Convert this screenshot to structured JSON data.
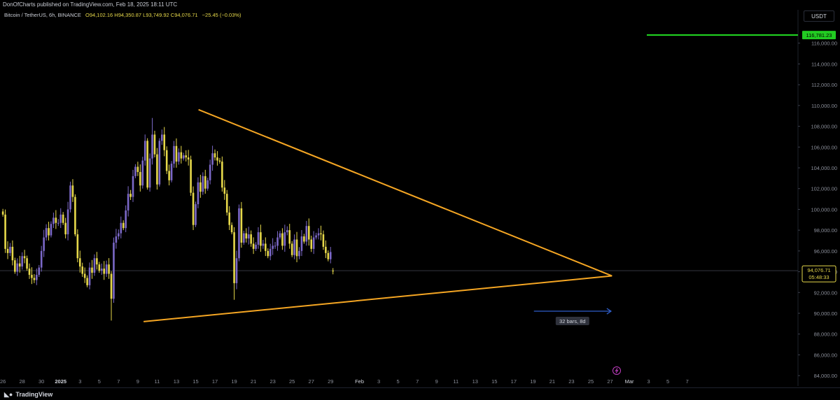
{
  "header": {
    "published": "DonOfCharts published on TradingView.com, Feb 18, 2025 18:11 UTC"
  },
  "legend": {
    "symbol": "Bitcoin / TetherUS, 6h, BINANCE",
    "ohlc": "O94,102.16 H94,350.87 L93,749.92 C94,076.71",
    "change": "−25.45 (−0.03%)"
  },
  "price_scale": {
    "currency": "USDT"
  },
  "colors": {
    "bull": "#7b68c8",
    "bear": "#e6d84a",
    "trendline": "#f5a623",
    "target_line": "#22dd22",
    "target_label_bg": "#22cc22",
    "price_label_bg": "#000000",
    "price_label_border": "#e6d84a",
    "measure_arrow": "#2f5ec9",
    "grid_text": "#8a8e99"
  },
  "footer": {
    "brand": "TradingView",
    "logo_icon": "tradingview-logo-icon"
  },
  "chart_data": {
    "type": "candlestick",
    "timeframe": "6h",
    "ylim": [
      83000,
      118000
    ],
    "xlim": [
      -0.3,
      82.5
    ],
    "yticks": [
      84000,
      86000,
      88000,
      90000,
      92000,
      94000,
      96000,
      98000,
      100000,
      102000,
      104000,
      106000,
      108000,
      110000,
      112000,
      114000,
      116000
    ],
    "ytick_labels": [
      "84,000.00",
      "86,000.00",
      "88,000.00",
      "90,000.00",
      "92,000.00",
      "94,000.00",
      "96,000.00",
      "98,000.00",
      "100,000.00",
      "102,000.00",
      "104,000.00",
      "106,000.00",
      "108,000.00",
      "110,000.00",
      "112,000.00",
      "114,000.00",
      "116,000.00"
    ],
    "xticks": [
      {
        "day": 0,
        "label": "26"
      },
      {
        "day": 2,
        "label": "28"
      },
      {
        "day": 4,
        "label": "30"
      },
      {
        "day": 6,
        "label": "2025"
      },
      {
        "day": 8,
        "label": "3"
      },
      {
        "day": 10,
        "label": "5"
      },
      {
        "day": 12,
        "label": "7"
      },
      {
        "day": 14,
        "label": "9"
      },
      {
        "day": 16,
        "label": "11"
      },
      {
        "day": 18,
        "label": "13"
      },
      {
        "day": 20,
        "label": "15"
      },
      {
        "day": 22,
        "label": "17"
      },
      {
        "day": 24,
        "label": "19"
      },
      {
        "day": 26,
        "label": "21"
      },
      {
        "day": 28,
        "label": "23"
      },
      {
        "day": 30,
        "label": "25"
      },
      {
        "day": 32,
        "label": "27"
      },
      {
        "day": 34,
        "label": "29"
      },
      {
        "day": 37,
        "label": "Feb"
      },
      {
        "day": 39,
        "label": "3"
      },
      {
        "day": 41,
        "label": "5"
      },
      {
        "day": 43,
        "label": "7"
      },
      {
        "day": 45,
        "label": "9"
      },
      {
        "day": 47,
        "label": "11"
      },
      {
        "day": 49,
        "label": "13"
      },
      {
        "day": 51,
        "label": "15"
      },
      {
        "day": 53,
        "label": "17"
      },
      {
        "day": 55,
        "label": "19"
      },
      {
        "day": 57,
        "label": "21"
      },
      {
        "day": 59,
        "label": "23"
      },
      {
        "day": 61,
        "label": "25"
      },
      {
        "day": 63,
        "label": "27"
      },
      {
        "day": 65,
        "label": "Mar"
      },
      {
        "day": 67,
        "label": "3"
      },
      {
        "day": 69,
        "label": "5"
      },
      {
        "day": 71,
        "label": "7"
      }
    ],
    "closes": [
      99500,
      96200,
      95800,
      96400,
      95100,
      94000,
      94800,
      94500,
      95500,
      95300,
      94300,
      93700,
      93400,
      93200,
      93700,
      94400,
      96000,
      97300,
      98200,
      97500,
      98600,
      99200,
      98700,
      98700,
      99500,
      98700,
      97600,
      100000,
      102300,
      101200,
      97600,
      95300,
      94500,
      93800,
      93400,
      92700,
      94400,
      93900,
      95300,
      94700,
      94100,
      94300,
      93800,
      94700,
      93800,
      91400,
      96800,
      97400,
      97700,
      98700,
      98200,
      99900,
      101500,
      101200,
      103200,
      104100,
      103600,
      102300,
      104700,
      106600,
      102100,
      104900,
      107200,
      105300,
      102400,
      106600,
      107200,
      105700,
      103700,
      102800,
      104400,
      106100,
      104600,
      105500,
      104900,
      105200,
      105000,
      104800,
      101600,
      98500,
      100500,
      102600,
      101700,
      103200,
      102000,
      102800,
      104300,
      105400,
      105000,
      104700,
      104600,
      102100,
      101500,
      99700,
      98500,
      97800,
      92900,
      95300,
      100100,
      96800,
      97700,
      97200,
      97600,
      96700,
      96200,
      96600,
      97800,
      96500,
      96700,
      96000,
      95500,
      96200,
      96500,
      96500,
      97300,
      97700,
      96500,
      97800,
      98000,
      96700,
      95600,
      97100,
      95500,
      96000,
      97400,
      96900,
      98400,
      97100,
      96200,
      97300,
      97500,
      97700,
      97600,
      96400,
      95800,
      95200,
      95900,
      94100
    ],
    "last_candle_ohlc": {
      "open": 94102.16,
      "high": 94350.87,
      "low": 93749.92,
      "close": 94076.71
    },
    "price_label": {
      "value": "94,076.71",
      "countdown": "05:48:33"
    },
    "target": {
      "value": 116781.23,
      "label": "116,781.23"
    },
    "triangle": {
      "upper": [
        {
          "day": 20.3,
          "price": 109600
        },
        {
          "day": 63.2,
          "price": 93600
        }
      ],
      "lower": [
        {
          "day": 14.6,
          "price": 89200
        },
        {
          "day": 63.2,
          "price": 93600
        }
      ]
    },
    "measure": {
      "label": "32 bars, 8d",
      "from_day": 55.1,
      "to_day": 63.1,
      "price": 90200
    },
    "reversal_icon": "lightning-icon"
  }
}
